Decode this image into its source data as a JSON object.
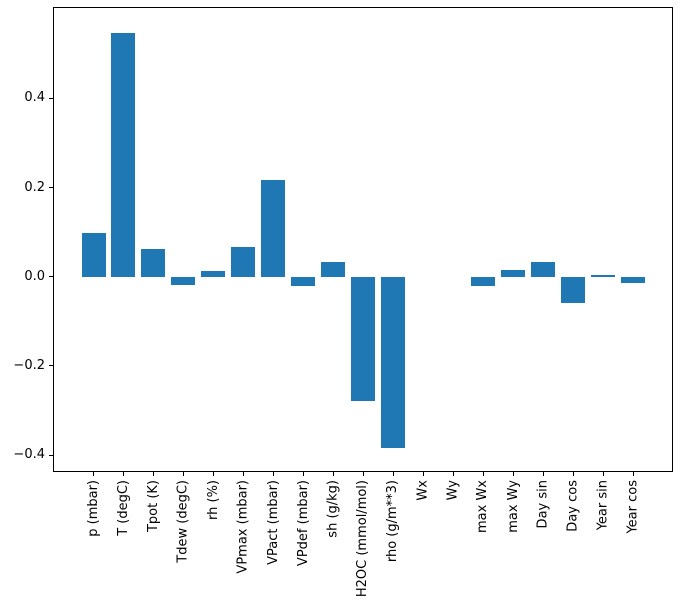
{
  "figure": {
    "background_color": "#ffffff",
    "spine_color": "#000000",
    "tick_color": "#000000",
    "text_color": "#000000"
  },
  "chart_data": {
    "type": "bar",
    "title": "",
    "xlabel": "",
    "ylabel": "",
    "grid": false,
    "legend": null,
    "bar_color": "#1f77b4",
    "categories": [
      "p (mbar)",
      "T (degC)",
      "Tpot (K)",
      "Tdew (degC)",
      "rh (%)",
      "VPmax (mbar)",
      "VPact (mbar)",
      "VPdef (mbar)",
      "sh (g/kg)",
      "H2OC (mmol/mol)",
      "rho (g/m**3)",
      "Wx",
      "Wy",
      "max Wx",
      "max Wy",
      "Day sin",
      "Day cos",
      "Year sin",
      "Year cos"
    ],
    "values": [
      0.099,
      0.548,
      0.063,
      -0.019,
      0.013,
      0.066,
      0.218,
      -0.02,
      0.032,
      -0.278,
      -0.384,
      0.0,
      0.0,
      -0.02,
      0.014,
      0.033,
      -0.059,
      0.003,
      -0.015
    ],
    "ylim": [
      -0.436,
      0.604
    ],
    "yticks": [
      0.4,
      0.2,
      0.0,
      -0.2,
      -0.4
    ],
    "ytick_labels": [
      "0.4",
      "0.2",
      "0.0",
      "−0.2",
      "−0.4"
    ]
  }
}
